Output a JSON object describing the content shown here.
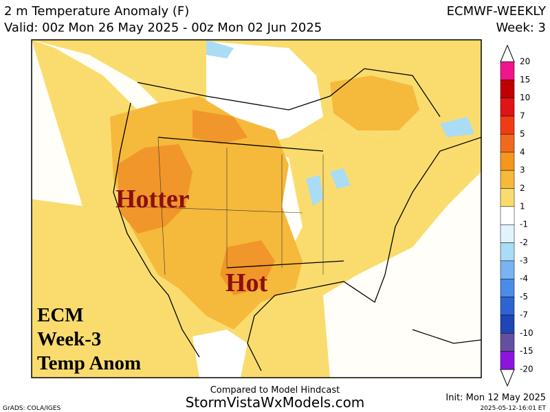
{
  "header": {
    "title": "2 m Temperature Anomaly (F)",
    "valid": "Valid: 00z Mon 26 May 2025 - 00z Mon 02 Jun 2025",
    "model": "ECMWF-WEEKLY",
    "week": "Week: 3"
  },
  "map": {
    "annotations": [
      "Hotter",
      "Hot"
    ],
    "label_lines": [
      "ECM",
      "Week-3",
      "Temp Anom"
    ]
  },
  "colorbar": {
    "labels": [
      "20",
      "15",
      "10",
      "7",
      "5",
      "4",
      "3",
      "2",
      "1",
      "-1",
      "-2",
      "-3",
      "-4",
      "-5",
      "-7",
      "-10",
      "-15",
      "-20"
    ],
    "colors": [
      "#f0158c",
      "#c00000",
      "#e01414",
      "#f03c14",
      "#f06a1e",
      "#f5961e",
      "#f5b93c",
      "#fadc6e",
      "#ffffff",
      "#dff4fb",
      "#aadcf5",
      "#78b4f0",
      "#4b8ce6",
      "#2d64d2",
      "#1e46b4",
      "#6450a0",
      "#8c14dc"
    ]
  },
  "footer": {
    "note": "Compared to Model Hindcast",
    "site": "StormVistaWxModels.com",
    "init": "Init: Mon 12 May 2025",
    "software": "GrADS: COLA/IGES",
    "timestamp": "2025-05-12-16:01 ET"
  }
}
